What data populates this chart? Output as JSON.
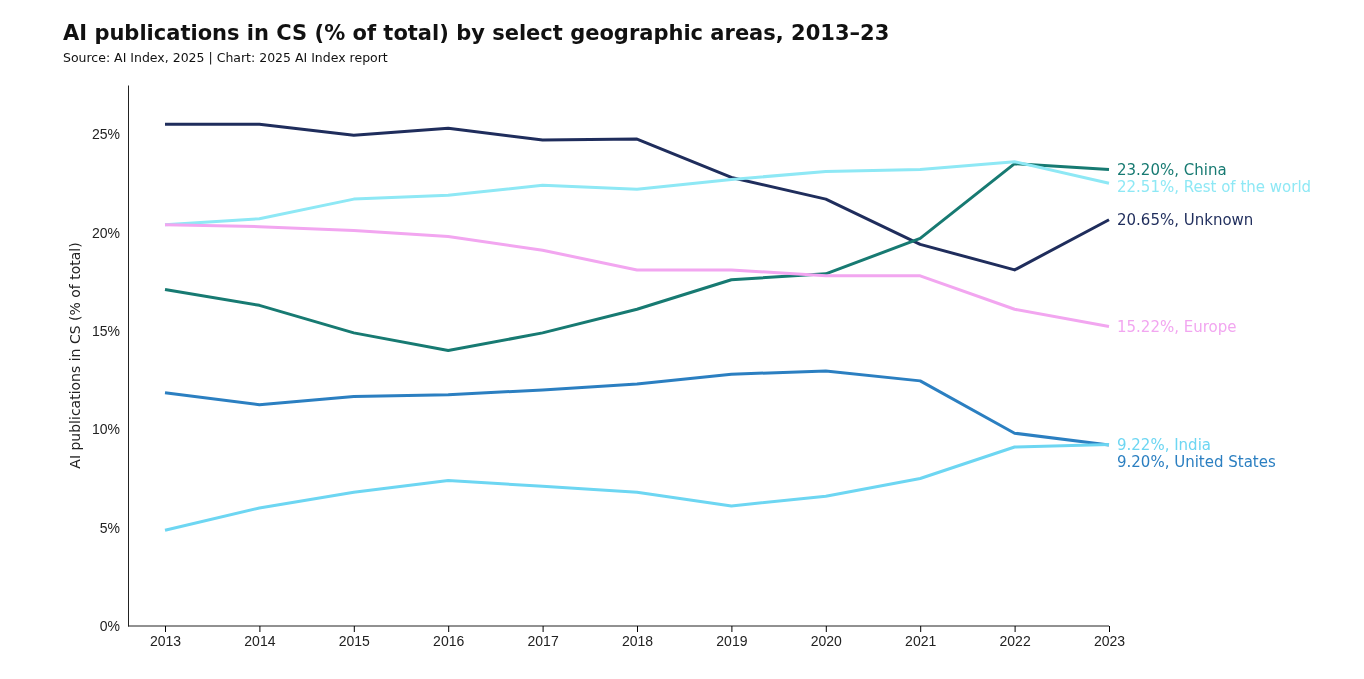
{
  "chart_data": {
    "type": "line",
    "title": "AI publications in CS (% of total) by select geographic areas, 2013–23",
    "subtitle": "Source: AI Index, 2025 | Chart: 2025 AI Index report",
    "ylabel": "AI publications in CS (% of total)",
    "categories": [
      "2013",
      "2014",
      "2015",
      "2016",
      "2017",
      "2018",
      "2019",
      "2020",
      "2021",
      "2022",
      "2023"
    ],
    "ylim": [
      0,
      27.5
    ],
    "yticks": [
      {
        "value": 0,
        "label": "0%"
      },
      {
        "value": 5,
        "label": "5%"
      },
      {
        "value": 10,
        "label": "10%"
      },
      {
        "value": 15,
        "label": "15%"
      },
      {
        "value": 20,
        "label": "20%"
      },
      {
        "value": 25,
        "label": "25%"
      }
    ],
    "grid": false,
    "legend": false,
    "marker": "none",
    "line_style": "solid",
    "series": [
      {
        "name": "Unknown",
        "color": "#1f2d5c",
        "values": [
          25.5,
          25.5,
          24.95,
          25.3,
          24.7,
          24.75,
          22.8,
          21.7,
          19.4,
          18.1,
          20.65
        ],
        "value_labels": [
          null,
          null,
          null,
          null,
          null,
          null,
          null,
          null,
          null,
          null,
          "20.65%,"
        ]
      },
      {
        "name": "China",
        "color": "#177a72",
        "values": [
          17.1,
          16.3,
          14.9,
          14.0,
          14.9,
          16.1,
          17.6,
          17.9,
          19.7,
          23.5,
          23.2
        ],
        "value_labels": [
          null,
          null,
          null,
          null,
          null,
          null,
          null,
          null,
          null,
          null,
          "23.20%,"
        ]
      },
      {
        "name": "Rest of the world",
        "color": "#8ee8f5",
        "values": [
          20.4,
          20.7,
          21.7,
          21.9,
          22.4,
          22.2,
          22.7,
          23.1,
          23.2,
          23.6,
          22.51
        ],
        "value_labels": [
          null,
          null,
          null,
          null,
          null,
          null,
          null,
          null,
          null,
          null,
          "22.51%,"
        ]
      },
      {
        "name": "Europe",
        "color": "#f2a6f0",
        "values": [
          20.4,
          20.3,
          20.1,
          19.8,
          19.1,
          18.1,
          18.1,
          17.8,
          17.8,
          16.1,
          15.22
        ],
        "value_labels": [
          null,
          null,
          null,
          null,
          null,
          null,
          null,
          null,
          null,
          null,
          "15.22%,"
        ]
      },
      {
        "name": "United States",
        "color": "#2b7fc1",
        "values": [
          11.86,
          11.25,
          11.66,
          11.76,
          12.0,
          12.3,
          12.8,
          12.96,
          12.46,
          9.8,
          9.2
        ],
        "value_labels": [
          null,
          null,
          null,
          null,
          null,
          null,
          null,
          null,
          null,
          null,
          "9.20%,"
        ]
      },
      {
        "name": "India",
        "color": "#6dd6f2",
        "values": [
          4.87,
          6.0,
          6.8,
          7.4,
          7.1,
          6.8,
          6.1,
          6.6,
          7.5,
          9.1,
          9.22
        ],
        "value_labels": [
          null,
          null,
          null,
          null,
          null,
          null,
          null,
          null,
          null,
          null,
          "9.22%,"
        ]
      }
    ]
  }
}
